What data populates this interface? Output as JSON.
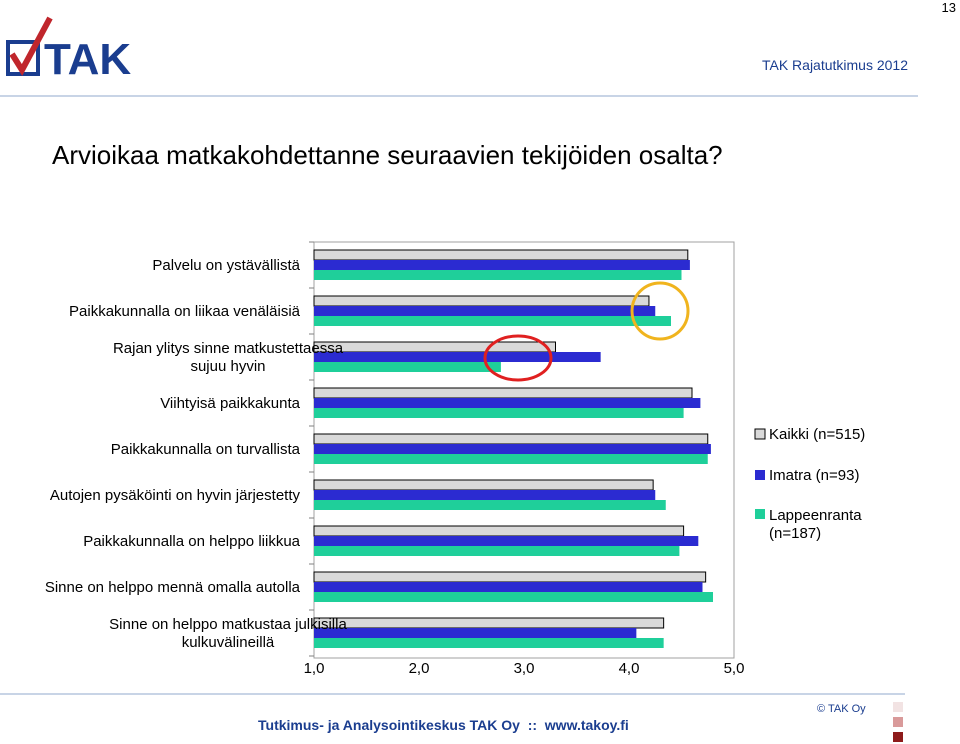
{
  "page_number": "13",
  "header": {
    "right_text": "TAK Rajatutkimus 2012",
    "logo_text": "TAK"
  },
  "title": "Arvioikaa matkakohdettanne seuraavien tekijöiden osalta?",
  "footer": {
    "text": "Tutkimus- ja Analysointikeskus TAK Oy  ::  www.takoy.fi",
    "copyright": "© TAK Oy"
  },
  "colors": {
    "kaikki": "#d9d9d9",
    "imatra": "#2b2bd1",
    "lappeenranta": "#1fcf9a",
    "brand_blue": "#1a3d8f",
    "red_circle": "#e02020",
    "yellow_circle": "#f0b41e"
  },
  "chart_data": {
    "type": "bar",
    "orientation": "horizontal",
    "categories": [
      "Palvelu on ystävällistä",
      "Paikkakunnalla on liikaa venäläisiä",
      "Rajan ylitys sinne matkustettaessa sujuu hyvin",
      "Viihtyisä paikkakunta",
      "Paikkakunnalla on turvallista",
      "Autojen pysäköinti on hyvin järjestetty",
      "Paikkakunnalla on helppo liikkua",
      "Sinne on helppo mennä omalla autolla",
      "Sinne on helppo matkustaa julkisilla kulkuvälineillä"
    ],
    "series": [
      {
        "name": "Kaikki (n=515)",
        "values": [
          4.56,
          4.19,
          3.3,
          4.6,
          4.75,
          4.23,
          4.52,
          4.73,
          4.33
        ]
      },
      {
        "name": "Imatra (n=93)",
        "values": [
          4.58,
          4.25,
          3.73,
          4.68,
          4.78,
          4.25,
          4.66,
          4.7,
          4.07
        ]
      },
      {
        "name": "Lappeenranta (n=187)",
        "values": [
          4.5,
          4.4,
          2.78,
          4.52,
          4.75,
          4.35,
          4.48,
          4.8,
          4.33
        ]
      }
    ],
    "xlim": [
      1,
      5
    ],
    "xticks": [
      "1,0",
      "2,0",
      "3,0",
      "4,0",
      "5,0"
    ],
    "legend_position": "right",
    "annotations": [
      "red circle around 'Rajan ylitys' Lappeenranta bar",
      "yellow circle around 'liikaa venäläisiä' bars"
    ]
  }
}
